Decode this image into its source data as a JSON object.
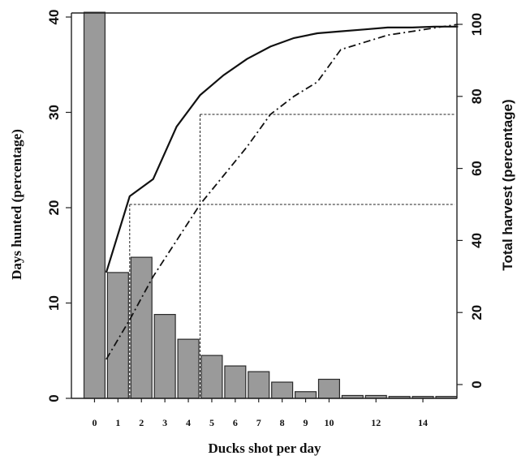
{
  "chart_data": {
    "type": "bar",
    "xlabel": "Ducks shot per day",
    "ylabel_left": "Days hunted (percentage)",
    "ylabel_right": "Total harvest (percentage)",
    "ylim_left": [
      0,
      40
    ],
    "ylim_right": [
      0,
      100
    ],
    "x_tick_labels": [
      "0",
      "1",
      "2",
      "3",
      "4",
      "5",
      "6",
      "7",
      "8",
      "9",
      "10",
      "12",
      "14"
    ],
    "left_ticks": [
      "0",
      "10",
      "20",
      "30",
      "40"
    ],
    "right_ticks": [
      "0",
      "20",
      "40",
      "60",
      "80",
      "100"
    ],
    "bars": {
      "x": [
        0,
        1,
        2,
        3,
        4,
        5,
        6,
        7,
        8,
        9,
        10,
        11,
        12,
        13,
        14,
        15
      ],
      "values": [
        40.5,
        13.2,
        14.8,
        8.8,
        6.2,
        4.5,
        3.4,
        2.8,
        1.7,
        0.7,
        2.0,
        0.3,
        0.3,
        0.2,
        0.2,
        0.2
      ]
    },
    "series": [
      {
        "axis": "left",
        "style": "solid",
        "x": [
          0.5,
          1.5,
          2.5,
          3.5,
          4.5,
          5.5,
          6.5,
          7.5,
          8.5,
          9.5,
          10.5,
          11.5,
          12.5,
          13.5,
          14.5,
          15.5
        ],
        "values": [
          13.2,
          21.2,
          23.0,
          28.5,
          31.8,
          33.9,
          35.6,
          36.9,
          37.8,
          38.3,
          38.5,
          38.7,
          38.9,
          38.9,
          39.0,
          39.0
        ]
      },
      {
        "axis": "right",
        "style": "dash-dot",
        "x": [
          0.5,
          1.5,
          2.5,
          3.5,
          4.5,
          5.5,
          6.5,
          7.5,
          8.5,
          9.5,
          10.5,
          11.5,
          12.5,
          13.5,
          14.5,
          15.5
        ],
        "values": [
          7,
          18,
          30,
          40,
          50,
          58,
          66,
          75,
          80,
          84,
          93,
          95,
          97,
          98,
          99,
          100
        ]
      }
    ],
    "reference_lines": {
      "vertical_x": [
        1.5,
        4.5
      ],
      "horizontal_right_axis": [
        50,
        75
      ]
    },
    "grid": false
  }
}
